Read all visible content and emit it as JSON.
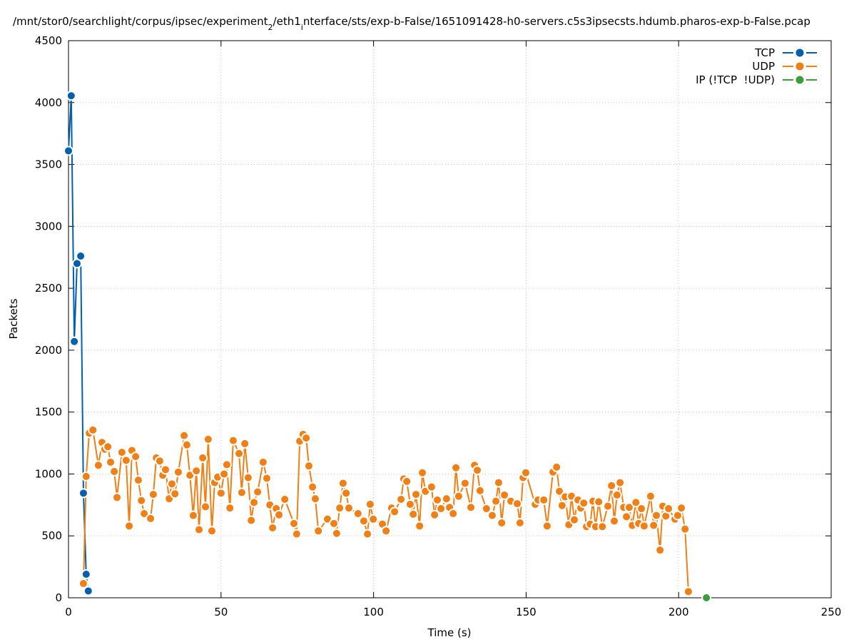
{
  "chart_data": {
    "type": "line",
    "title": [
      "/mnt/stor0/searchlight/corpus/ipsec/experiment",
      "2",
      "/eth1",
      "i",
      "nterface/sts/exp-b-False/1651091428-h0-servers.c5s3ipsecsts.hdumb.pharos-exp-b-False.pcap"
    ],
    "x_label": "Time (s)",
    "y_label": "Packets",
    "xlim": [
      0,
      250
    ],
    "ylim": [
      0,
      4500
    ],
    "xticks": [
      0,
      50,
      100,
      150,
      200,
      250
    ],
    "yticks": [
      0,
      500,
      1000,
      1500,
      2000,
      2500,
      3000,
      3500,
      4000,
      4500
    ],
    "grid": true,
    "legend": "top-right",
    "series": [
      {
        "name": "TCP",
        "color": "#0060ad",
        "x": [
          0,
          0.9,
          1.9,
          2.8,
          4.0,
          4.9,
          5.8,
          6.5
        ],
        "values": [
          3610,
          4055,
          2070,
          2700,
          2760,
          845,
          190,
          55
        ]
      },
      {
        "name": "UDP",
        "color": "#f07f16",
        "x": [
          4.9,
          5.8,
          6.8,
          8.0,
          9.8,
          11.0,
          11.9,
          12.9,
          13.8,
          15.0,
          15.9,
          17.5,
          18.9,
          19.9,
          20.8,
          22.0,
          22.9,
          23.9,
          24.8,
          26.9,
          27.8,
          28.8,
          29.9,
          30.9,
          31.8,
          33.0,
          33.9,
          34.9,
          36.0,
          37.9,
          38.8,
          39.8,
          40.9,
          41.9,
          42.8,
          44.0,
          44.9,
          45.8,
          47.0,
          47.9,
          48.9,
          50.0,
          51.0,
          51.9,
          52.9,
          54.0,
          55.9,
          56.8,
          57.8,
          58.9,
          59.9,
          60.8,
          62.0,
          63.8,
          65.0,
          66.0,
          66.9,
          68.1,
          69.0,
          70.9,
          73.9,
          74.8,
          75.8,
          76.9,
          77.9,
          78.8,
          80.0,
          80.9,
          81.9,
          84.9,
          87.0,
          87.9,
          88.9,
          90.0,
          91.0,
          91.9,
          94.9,
          96.8,
          98.0,
          98.9,
          99.9,
          102.9,
          104.1,
          105.9,
          106.9,
          109.0,
          109.9,
          110.9,
          112.0,
          113.0,
          113.9,
          115.1,
          116.0,
          117.0,
          119.0,
          120.0,
          120.9,
          122.1,
          123.9,
          124.9,
          126.1,
          127.0,
          127.9,
          130.0,
          131.9,
          133.1,
          134.0,
          134.9,
          137.0,
          138.9,
          140.1,
          141.0,
          142.0,
          142.9,
          145.0,
          147.1,
          148.0,
          149.0,
          149.9,
          153.0,
          153.9,
          155.8,
          156.9,
          158.8,
          160.0,
          160.9,
          161.8,
          162.8,
          164.0,
          164.9,
          165.8,
          167.0,
          167.9,
          168.9,
          169.8,
          171.0,
          171.9,
          172.8,
          173.8,
          175.0,
          176.8,
          178.0,
          178.9,
          179.8,
          180.8,
          182.0,
          182.9,
          183.8,
          184.8,
          186.0,
          186.9,
          187.8,
          188.7,
          190.8,
          191.8,
          192.7,
          193.9,
          194.8,
          195.8,
          196.7,
          198.8,
          199.7,
          200.9,
          202.1,
          203.2
        ],
        "values": [
          115,
          980,
          1330,
          1355,
          1070,
          1255,
          1200,
          1220,
          1095,
          1020,
          810,
          1175,
          1110,
          580,
          1190,
          1140,
          950,
          785,
          680,
          640,
          835,
          1130,
          1105,
          990,
          1035,
          800,
          920,
          840,
          1015,
          1310,
          1235,
          990,
          665,
          1025,
          550,
          1130,
          735,
          1280,
          540,
          930,
          975,
          845,
          1000,
          1075,
          725,
          1270,
          1165,
          850,
          1245,
          970,
          625,
          770,
          855,
          1095,
          965,
          750,
          565,
          720,
          670,
          795,
          600,
          515,
          1265,
          1320,
          1290,
          1065,
          895,
          800,
          540,
          635,
          600,
          520,
          725,
          925,
          845,
          725,
          680,
          620,
          515,
          755,
          635,
          595,
          540,
          725,
          695,
          795,
          960,
          940,
          755,
          675,
          835,
          580,
          1010,
          860,
          895,
          670,
          790,
          720,
          800,
          730,
          680,
          1050,
          820,
          925,
          730,
          1070,
          1030,
          865,
          720,
          665,
          780,
          930,
          605,
          830,
          780,
          760,
          605,
          970,
          1010,
          755,
          790,
          790,
          580,
          1015,
          1055,
          860,
          745,
          815,
          590,
          820,
          630,
          790,
          725,
          765,
          575,
          595,
          780,
          575,
          775,
          575,
          740,
          905,
          620,
          830,
          930,
          730,
          655,
          730,
          585,
          770,
          600,
          720,
          580,
          820,
          585,
          665,
          385,
          740,
          660,
          720,
          635,
          665,
          725,
          555,
          50
        ]
      },
      {
        "name": "IP (!TCP  !UDP)",
        "color": "#3a9e3a",
        "x": [
          209.1
        ],
        "values": [
          0
        ]
      }
    ]
  }
}
